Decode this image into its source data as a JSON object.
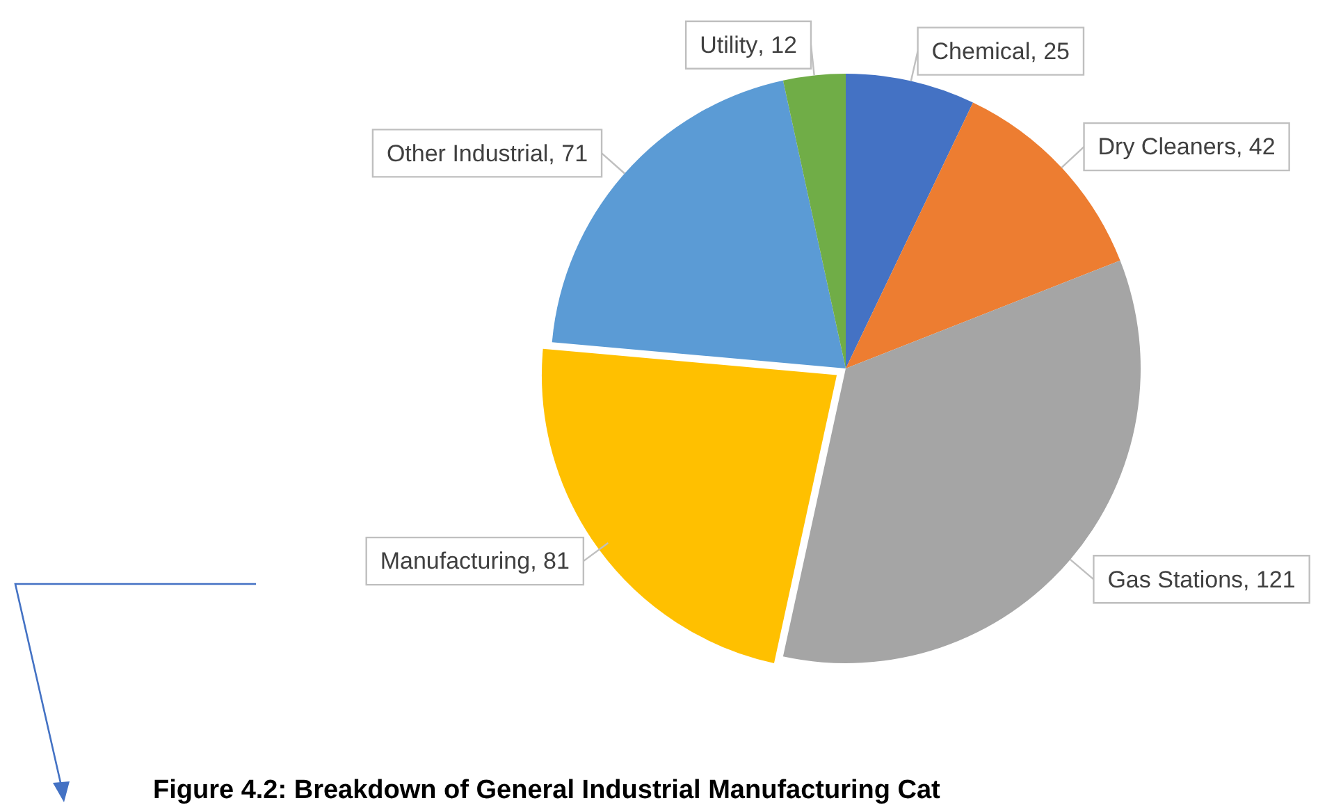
{
  "chart_data": {
    "type": "pie",
    "categories": [
      "Chemical",
      "Dry Cleaners",
      "Gas Stations",
      "Manufacturing",
      "Other Industrial",
      "Utility"
    ],
    "values": [
      25,
      42,
      121,
      81,
      71,
      12
    ],
    "colors": [
      "#4472c4",
      "#ed7d31",
      "#a5a5a5",
      "#ffc000",
      "#5b9bd5",
      "#70ad47"
    ],
    "value_labels": [
      ", 25",
      ", 42",
      ", 121",
      ", 81",
      ", 71",
      ", 12"
    ],
    "legend": false,
    "annotations": [
      "Figure 4.2: Breakdown of General Industrial Manufacturing Cat"
    ]
  }
}
